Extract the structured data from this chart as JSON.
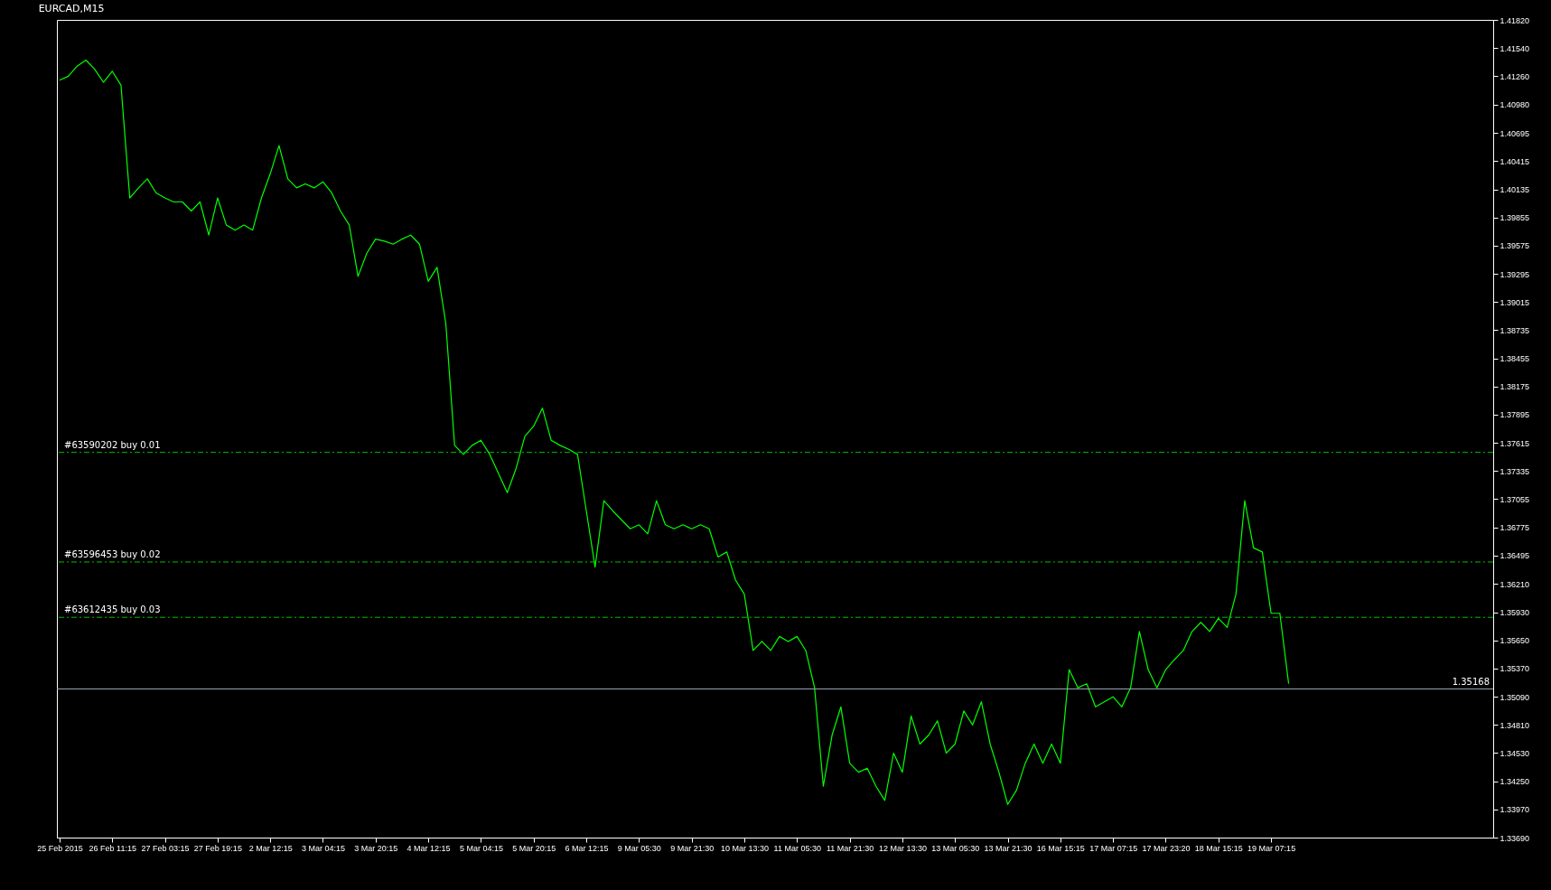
{
  "chart_data": {
    "type": "line",
    "title": "EURCAD,M15",
    "categories": [
      "25 Feb 2015",
      null,
      null,
      null,
      null,
      null,
      "26 Feb 11:15",
      null,
      null,
      null,
      null,
      null,
      "27 Feb 03:15",
      null,
      null,
      null,
      null,
      null,
      "27 Feb 19:15",
      null,
      null,
      null,
      null,
      null,
      "2 Mar 12:15",
      null,
      null,
      null,
      null,
      null,
      "3 Mar 04:15",
      null,
      null,
      null,
      null,
      null,
      "3 Mar 20:15",
      null,
      null,
      null,
      null,
      null,
      "4 Mar 12:15",
      null,
      null,
      null,
      null,
      null,
      "5 Mar 04:15",
      null,
      null,
      null,
      null,
      null,
      "5 Mar 20:15",
      null,
      null,
      null,
      null,
      null,
      "6 Mar 12:15",
      null,
      null,
      null,
      null,
      null,
      "9 Mar 05:30",
      null,
      null,
      null,
      null,
      null,
      "9 Mar 21:30",
      null,
      null,
      null,
      null,
      null,
      "10 Mar 13:30",
      null,
      null,
      null,
      null,
      null,
      "11 Mar 05:30",
      null,
      null,
      null,
      null,
      null,
      "11 Mar 21:30",
      null,
      null,
      null,
      null,
      null,
      "12 Mar 13:30",
      null,
      null,
      null,
      null,
      null,
      "13 Mar 05:30",
      null,
      null,
      null,
      null,
      null,
      "13 Mar 21:30",
      null,
      null,
      null,
      null,
      null,
      "16 Mar 15:15",
      null,
      null,
      null,
      null,
      null,
      "17 Mar 07:15",
      null,
      null,
      null,
      null,
      null,
      "17 Mar 23:20",
      null,
      null,
      null,
      null,
      null,
      "18 Mar 15:15",
      null,
      null,
      null,
      null,
      null,
      "19 Mar 07:15",
      null,
      null,
      null,
      null,
      null,
      null,
      null,
      null,
      null,
      null,
      null,
      null,
      null,
      null,
      null,
      null,
      null,
      null,
      null,
      null,
      null,
      null,
      null,
      null,
      null
    ],
    "series": [
      {
        "color": "#00ff00",
        "values": [
          1.4122,
          1.4126,
          1.4136,
          1.4142,
          1.4133,
          1.412,
          1.4131,
          1.4117,
          1.4005,
          1.4015,
          1.4024,
          1.401,
          1.4005,
          1.4001,
          1.4001,
          1.3992,
          1.4001,
          1.3968,
          1.4005,
          1.3978,
          1.3973,
          1.3978,
          1.3973,
          1.4005,
          1.4029,
          1.4057,
          1.4024,
          1.4015,
          1.4019,
          1.4015,
          1.4021,
          1.401,
          1.3992,
          1.3978,
          1.3927,
          1.395,
          1.3964,
          1.3962,
          1.3959,
          1.3964,
          1.3968,
          1.3959,
          1.3922,
          1.3936,
          1.388,
          1.3759,
          1.375,
          1.3759,
          1.3764,
          1.375,
          1.3731,
          1.3712,
          1.3736,
          1.3768,
          1.3778,
          1.3796,
          1.3764,
          1.3759,
          1.3755,
          1.375,
          1.3694,
          1.3638,
          1.3704,
          1.3694,
          1.3685,
          1.3676,
          1.368,
          1.3671,
          1.3704,
          1.368,
          1.3676,
          1.368,
          1.3676,
          1.368,
          1.3676,
          1.3648,
          1.3653,
          1.3625,
          1.3611,
          1.3555,
          1.3564,
          1.3555,
          1.3569,
          1.3564,
          1.3569,
          1.3555,
          1.3518,
          1.342,
          1.3471,
          1.3499,
          1.3443,
          1.3434,
          1.3438,
          1.342,
          1.3406,
          1.3453,
          1.3434,
          1.349,
          1.3462,
          1.3471,
          1.3485,
          1.3453,
          1.3462,
          1.3495,
          1.3481,
          1.3504,
          1.3462,
          1.3434,
          1.3402,
          1.3416,
          1.3443,
          1.3462,
          1.3443,
          1.3462,
          1.3443,
          1.3536,
          1.3518,
          1.3522,
          1.3499,
          1.3504,
          1.3509,
          1.3499,
          1.3518,
          1.3574,
          1.3536,
          1.3518,
          1.3536,
          1.3546,
          1.3555,
          1.3574,
          1.3583,
          1.3574,
          1.3587,
          1.3578,
          1.3611,
          1.3704,
          1.3657,
          1.3653,
          1.3592,
          1.3592,
          1.3522,
          null,
          null,
          null,
          null,
          null,
          null,
          null,
          null,
          null,
          null,
          null,
          null,
          null,
          null,
          null,
          null,
          null,
          null,
          null,
          null,
          null,
          null,
          null
        ]
      }
    ],
    "ylim": [
      1.3369,
      1.4182
    ],
    "yticks": [
      {
        "value": 1.3369,
        "label": "1.33690"
      },
      {
        "value": 1.3397,
        "label": "1.33970"
      },
      {
        "value": 1.3425,
        "label": "1.34250"
      },
      {
        "value": 1.3453,
        "label": "1.34530"
      },
      {
        "value": 1.3481,
        "label": "1.34810"
      },
      {
        "value": 1.3509,
        "label": "1.35090"
      },
      {
        "value": 1.3537,
        "label": "1.35370"
      },
      {
        "value": 1.3565,
        "label": "1.35650"
      },
      {
        "value": 1.3593,
        "label": "1.35930"
      },
      {
        "value": 1.3621,
        "label": "1.36210"
      },
      1.36495,
      1.36775,
      1.37055,
      1.37335,
      1.37615,
      1.37895,
      1.38175,
      1.38455,
      1.38735,
      1.39015,
      1.39295,
      1.39575,
      1.39855,
      1.40135,
      1.40415,
      1.40695,
      {
        "value": 1.4098,
        "label": "1.40980"
      },
      {
        "value": 1.4126,
        "label": "1.41260"
      },
      {
        "value": 1.4154,
        "label": "1.41540"
      },
      {
        "value": 1.4182,
        "label": "1.41820"
      }
    ],
    "ref_lines": [
      {
        "axis": "y",
        "value": 1.3752,
        "label": "#63590202 buy 0.01",
        "color": "#00c000",
        "line_style": "dashed"
      },
      {
        "axis": "y",
        "value": 1.3643,
        "label": "#63596453 buy 0.02",
        "color": "#00c000",
        "line_style": "dashed"
      },
      {
        "axis": "y",
        "value": 1.3588,
        "label": "#63612435 buy 0.03",
        "color": "#00c000",
        "line_style": "dashed"
      },
      {
        "axis": "y",
        "value": 1.35168,
        "label": "1.35168",
        "color": "#9aa4b8",
        "line_style": "solid"
      }
    ],
    "grid": false,
    "marker": "none",
    "line_style": "solid"
  }
}
